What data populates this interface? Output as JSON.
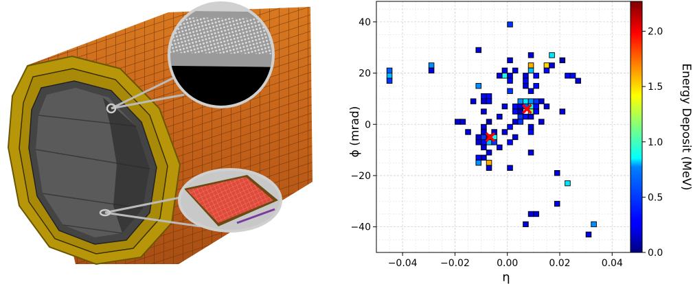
{
  "figure": {
    "left_panel": {
      "description_icon": "detector-barrel-illustration-icon"
    },
    "right_panel": {
      "chart_data": {
        "type": "heatmap",
        "title": "",
        "xlabel": "η",
        "ylabel": "ϕ (mrad)",
        "xlim": [
          -0.05,
          0.047
        ],
        "ylim": [
          -50,
          48
        ],
        "x_ticks": [
          -0.04,
          -0.02,
          0.0,
          0.02,
          0.04
        ],
        "x_tick_labels": [
          "−0.04",
          "−0.02",
          "0.00",
          "0.02",
          "0.04"
        ],
        "y_ticks": [
          -40,
          -20,
          0,
          20,
          40
        ],
        "y_tick_labels": [
          "−40",
          "−20",
          "0",
          "20",
          "40"
        ],
        "grid": true,
        "pixel_size": {
          "eta": 0.002,
          "phi": 2
        },
        "colorbar": {
          "label": "Energy Deposit (MeV)",
          "range": [
            0.0,
            2.27
          ],
          "ticks": [
            0.0,
            0.5,
            1.0,
            1.5,
            2.0
          ],
          "tick_labels": [
            "0.0",
            "0.5",
            "1.0",
            "1.5",
            "2.0"
          ],
          "colormap": "jet"
        },
        "markers": [
          {
            "eta": -0.0065,
            "phi": -5,
            "symbol": "x",
            "color": "#ff0000"
          },
          {
            "eta": 0.0075,
            "phi": 6,
            "symbol": "x",
            "color": "#ff0000"
          }
        ],
        "cells": [
          {
            "eta": 0.001,
            "phi": 39,
            "e": 0.4
          },
          {
            "eta": -0.045,
            "phi": 21,
            "e": 0.5
          },
          {
            "eta": -0.045,
            "phi": 19,
            "e": 0.7
          },
          {
            "eta": -0.045,
            "phi": 17,
            "e": 0.4
          },
          {
            "eta": -0.029,
            "phi": 23,
            "e": 0.6
          },
          {
            "eta": -0.029,
            "phi": 21,
            "e": 0.2
          },
          {
            "eta": -0.011,
            "phi": 29,
            "e": 0.2
          },
          {
            "eta": 0.001,
            "phi": 25,
            "e": 0.2
          },
          {
            "eta": 0.009,
            "phi": 27,
            "e": 0.2
          },
          {
            "eta": 0.017,
            "phi": 27,
            "e": 0.8
          },
          {
            "eta": 0.021,
            "phi": 25,
            "e": 0.1
          },
          {
            "eta": -0.001,
            "phi": 21,
            "e": 0.2
          },
          {
            "eta": 0.003,
            "phi": 21,
            "e": 0.2
          },
          {
            "eta": 0.009,
            "phi": 23,
            "e": 1.6
          },
          {
            "eta": 0.015,
            "phi": 23,
            "e": 1.5
          },
          {
            "eta": 0.017,
            "phi": 23,
            "e": 0.2
          },
          {
            "eta": 0.009,
            "phi": 21,
            "e": 0.7
          },
          {
            "eta": 0.015,
            "phi": 21,
            "e": 0.3
          },
          {
            "eta": -0.003,
            "phi": 19,
            "e": 0.2
          },
          {
            "eta": -0.001,
            "phi": 19,
            "e": 0.9
          },
          {
            "eta": 0.001,
            "phi": 19,
            "e": 0.2
          },
          {
            "eta": 0.007,
            "phi": 19,
            "e": 0.2
          },
          {
            "eta": 0.011,
            "phi": 19,
            "e": 0.3
          },
          {
            "eta": 0.023,
            "phi": 19,
            "e": 0.3
          },
          {
            "eta": 0.025,
            "phi": 19,
            "e": 0.3
          },
          {
            "eta": 0.027,
            "phi": 17,
            "e": 0.2
          },
          {
            "eta": 0.001,
            "phi": 17,
            "e": 0.3
          },
          {
            "eta": 0.007,
            "phi": 17,
            "e": 0.3
          },
          {
            "eta": -0.011,
            "phi": 15,
            "e": 0.6
          },
          {
            "eta": 0.007,
            "phi": 15,
            "e": 0.2
          },
          {
            "eta": 0.011,
            "phi": 15,
            "e": 0.3
          },
          {
            "eta": 0.001,
            "phi": 13,
            "e": 0.4
          },
          {
            "eta": 0.009,
            "phi": 13,
            "e": 0.2
          },
          {
            "eta": -0.009,
            "phi": 11,
            "e": 0.3
          },
          {
            "eta": -0.007,
            "phi": 11,
            "e": 0.3
          },
          {
            "eta": -0.013,
            "phi": 9,
            "e": 0.2
          },
          {
            "eta": -0.009,
            "phi": 9,
            "e": 0.2
          },
          {
            "eta": -0.007,
            "phi": 9,
            "e": 0.3
          },
          {
            "eta": 0.005,
            "phi": 9,
            "e": 0.6
          },
          {
            "eta": 0.007,
            "phi": 9,
            "e": 0.8
          },
          {
            "eta": 0.009,
            "phi": 9,
            "e": 0.6
          },
          {
            "eta": 0.011,
            "phi": 9,
            "e": 0.4
          },
          {
            "eta": 0.013,
            "phi": 9,
            "e": 0.2
          },
          {
            "eta": -0.001,
            "phi": 7,
            "e": 0.2
          },
          {
            "eta": 0.003,
            "phi": 7,
            "e": 0.3
          },
          {
            "eta": 0.005,
            "phi": 7,
            "e": 0.2
          },
          {
            "eta": 0.007,
            "phi": 7,
            "e": 0.5
          },
          {
            "eta": 0.009,
            "phi": 7,
            "e": 0.9
          },
          {
            "eta": 0.011,
            "phi": 7,
            "e": 0.3
          },
          {
            "eta": 0.015,
            "phi": 7,
            "e": 0.2
          },
          {
            "eta": -0.009,
            "phi": 5,
            "e": 0.2
          },
          {
            "eta": 0.003,
            "phi": 5,
            "e": 0.3
          },
          {
            "eta": 0.005,
            "phi": 5,
            "e": 0.1
          },
          {
            "eta": 0.009,
            "phi": 5,
            "e": 1.2
          },
          {
            "eta": 0.011,
            "phi": 5,
            "e": 0.3
          },
          {
            "eta": 0.021,
            "phi": 5,
            "e": 0.2
          },
          {
            "eta": -0.003,
            "phi": 3,
            "e": 0.2
          },
          {
            "eta": 0.005,
            "phi": 3,
            "e": 0.4
          },
          {
            "eta": 0.007,
            "phi": 3,
            "e": 0.3
          },
          {
            "eta": 0.009,
            "phi": 3,
            "e": 0.2
          },
          {
            "eta": -0.019,
            "phi": 1,
            "e": 0.2
          },
          {
            "eta": -0.017,
            "phi": 1,
            "e": 0.2
          },
          {
            "eta": -0.007,
            "phi": 1,
            "e": 0.1
          },
          {
            "eta": 0.003,
            "phi": 1,
            "e": 0.2
          },
          {
            "eta": 0.005,
            "phi": 1,
            "e": 0.4
          },
          {
            "eta": 0.013,
            "phi": 1,
            "e": 0.2
          },
          {
            "eta": -0.009,
            "phi": -1,
            "e": 0.2
          },
          {
            "eta": 0.001,
            "phi": -1,
            "e": 0.3
          },
          {
            "eta": 0.009,
            "phi": -1,
            "e": 0.2
          },
          {
            "eta": -0.015,
            "phi": -3,
            "e": 0.2
          },
          {
            "eta": -0.009,
            "phi": -3,
            "e": 0.2
          },
          {
            "eta": -0.005,
            "phi": -3,
            "e": 0.2
          },
          {
            "eta": -0.001,
            "phi": -3,
            "e": 0.2
          },
          {
            "eta": 0.009,
            "phi": -3,
            "e": 0.3
          },
          {
            "eta": -0.011,
            "phi": -5,
            "e": 0.2
          },
          {
            "eta": -0.009,
            "phi": -5,
            "e": 0.4
          },
          {
            "eta": -0.007,
            "phi": -5,
            "e": 2.2
          },
          {
            "eta": -0.005,
            "phi": -5,
            "e": 0.9
          },
          {
            "eta": 0.003,
            "phi": -5,
            "e": 0.2
          },
          {
            "eta": -0.011,
            "phi": -7,
            "e": 0.2
          },
          {
            "eta": -0.009,
            "phi": -7,
            "e": 0.3
          },
          {
            "eta": -0.007,
            "phi": -7,
            "e": 0.7
          },
          {
            "eta": -0.005,
            "phi": -7,
            "e": 0.4
          },
          {
            "eta": 0.001,
            "phi": -7,
            "e": 0.3
          },
          {
            "eta": -0.009,
            "phi": -9,
            "e": 0.2
          },
          {
            "eta": -0.003,
            "phi": -9,
            "e": 0.2
          },
          {
            "eta": -0.007,
            "phi": -11,
            "e": 0.2
          },
          {
            "eta": 0.009,
            "phi": -11,
            "e": 0.2
          },
          {
            "eta": -0.011,
            "phi": -13,
            "e": 0.3
          },
          {
            "eta": -0.009,
            "phi": -13,
            "e": 0.2
          },
          {
            "eta": -0.011,
            "phi": -15,
            "e": 0.6
          },
          {
            "eta": -0.007,
            "phi": -15,
            "e": 1.6
          },
          {
            "eta": -0.007,
            "phi": -17,
            "e": 0.2
          },
          {
            "eta": 0.001,
            "phi": -17,
            "e": 0.2
          },
          {
            "eta": 0.019,
            "phi": -19,
            "e": 0.2
          },
          {
            "eta": 0.023,
            "phi": -23,
            "e": 0.8
          },
          {
            "eta": 0.019,
            "phi": -31,
            "e": 0.2
          },
          {
            "eta": 0.009,
            "phi": -35,
            "e": 0.2
          },
          {
            "eta": 0.011,
            "phi": -35,
            "e": 0.2
          },
          {
            "eta": 0.007,
            "phi": -39,
            "e": 0.2
          },
          {
            "eta": 0.033,
            "phi": -39,
            "e": 0.6
          },
          {
            "eta": 0.031,
            "phi": -43,
            "e": 0.2
          }
        ]
      }
    }
  }
}
